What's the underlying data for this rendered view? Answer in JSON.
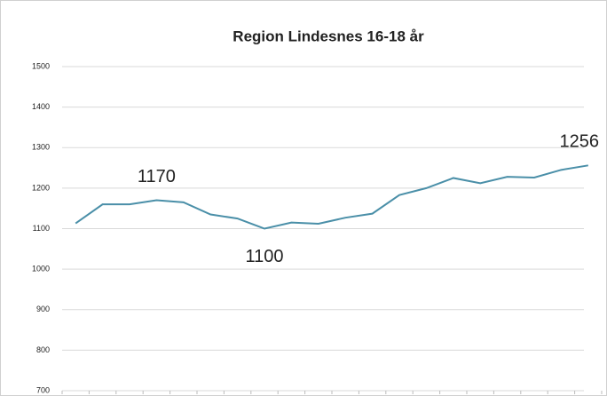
{
  "chart_data": {
    "type": "line",
    "title": "Region Lindesnes 16-18 år",
    "categories": [
      null,
      null,
      null,
      null,
      null,
      null,
      null,
      null,
      null,
      null,
      null,
      null,
      null,
      null,
      null,
      null,
      null,
      null,
      null,
      null
    ],
    "series": [
      {
        "name": null,
        "color": "#4a8fa8",
        "values": [
          1113,
          1160,
          1160,
          1170,
          1165,
          1135,
          1125,
          1100,
          1115,
          1112,
          1127,
          1137,
          1183,
          1200,
          1225,
          1212,
          1228,
          1226,
          1245,
          1256
        ],
        "value_labels": [
          null,
          null,
          null,
          "1170",
          null,
          null,
          null,
          "1100",
          null,
          null,
          null,
          null,
          null,
          null,
          null,
          null,
          null,
          null,
          null,
          "1256"
        ]
      }
    ],
    "ylim": [
      700,
      1500
    ],
    "yticks": [
      700,
      800,
      900,
      1000,
      1100,
      1200,
      1300,
      1400,
      1500
    ],
    "grid": true
  }
}
